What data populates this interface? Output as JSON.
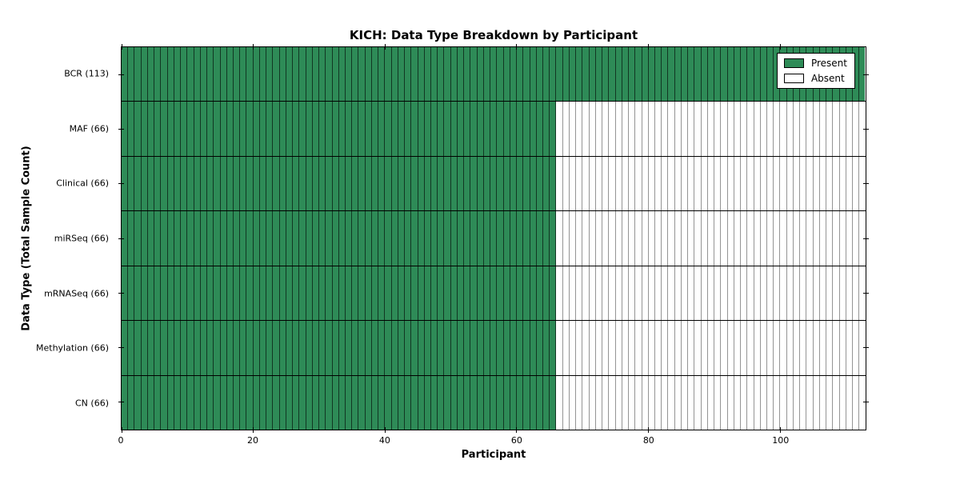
{
  "figure": {
    "background": "#ffffff"
  },
  "colors": {
    "present": "#2e8b57",
    "absent": "#ffffff",
    "spine": "#000000",
    "row_separator": "#000000",
    "present_cell_border": "rgba(0,0,0,0.60)",
    "absent_cell_border": "rgba(0,0,0,0.42)"
  },
  "chart_data": {
    "type": "heatmap",
    "title": "KICH: Data Type Breakdown by Participant",
    "xlabel": "Participant",
    "ylabel": "Data Type (Total Sample Count)",
    "n_participants": 113,
    "xlim": [
      0,
      113
    ],
    "xticks": [
      0,
      20,
      40,
      60,
      80,
      100
    ],
    "grid": "cell-borders",
    "categories": [
      "BCR (113)",
      "MAF (66)",
      "Clinical (66)",
      "miRSeq (66)",
      "mRNASeq (66)",
      "Methylation (66)",
      "CN (66)"
    ],
    "rows": [
      {
        "label": "BCR (113)",
        "data_type": "BCR",
        "total_samples": 113,
        "present": 113,
        "absent": 0
      },
      {
        "label": "MAF (66)",
        "data_type": "MAF",
        "total_samples": 66,
        "present": 66,
        "absent": 47
      },
      {
        "label": "Clinical (66)",
        "data_type": "Clinical",
        "total_samples": 66,
        "present": 66,
        "absent": 47
      },
      {
        "label": "miRSeq (66)",
        "data_type": "miRSeq",
        "total_samples": 66,
        "present": 66,
        "absent": 47
      },
      {
        "label": "mRNASeq (66)",
        "data_type": "mRNASeq",
        "total_samples": 66,
        "present": 66,
        "absent": 47
      },
      {
        "label": "Methylation (66)",
        "data_type": "Methylation",
        "total_samples": 66,
        "present": 66,
        "absent": 47
      },
      {
        "label": "CN (66)",
        "data_type": "CN",
        "total_samples": 66,
        "present": 66,
        "absent": 47
      }
    ],
    "legend": {
      "position": "upper right",
      "entries": [
        {
          "label": "Present",
          "color": "#2e8b57"
        },
        {
          "label": "Absent",
          "color": "#ffffff"
        }
      ]
    }
  }
}
